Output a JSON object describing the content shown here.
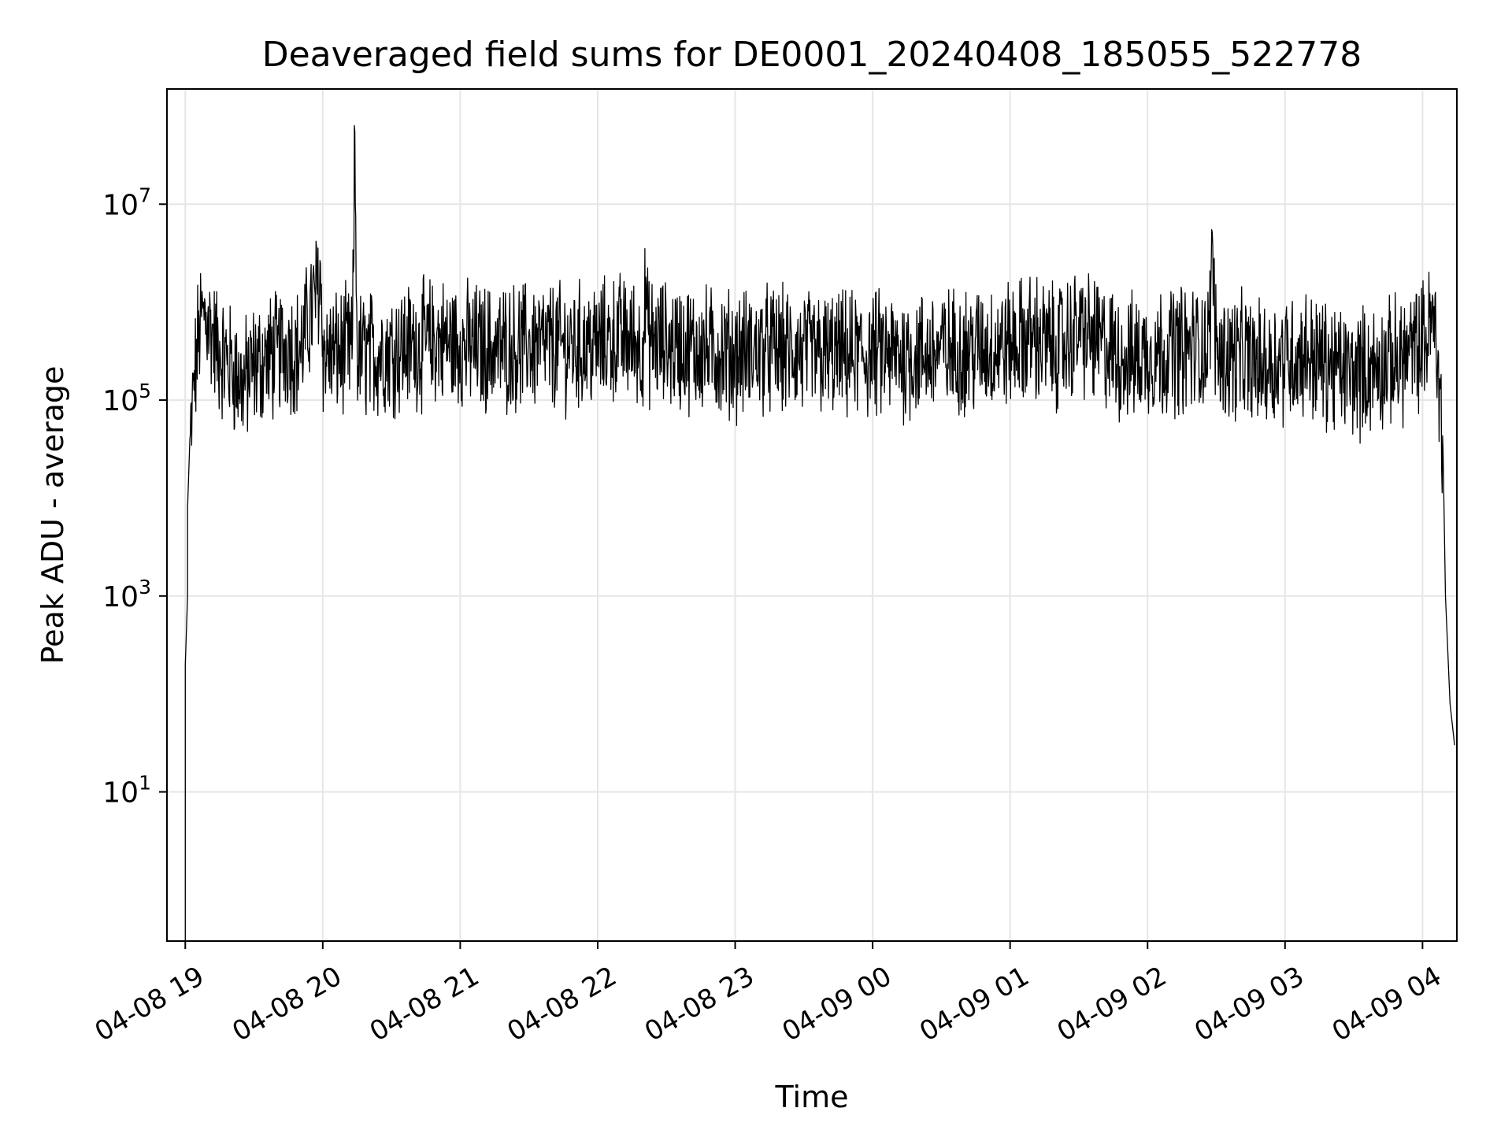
{
  "chart_data": {
    "type": "line",
    "title": "Deaveraged field sums for DE0001_20240408_185055_522778",
    "xlabel": "Time",
    "ylabel": "Peak ADU - average",
    "y_scale": "log",
    "x_axis_type": "datetime",
    "x_range": [
      "2024-04-08 18:52",
      "2024-04-09 04:15"
    ],
    "y_range": [
      0.3,
      150000000
    ],
    "x_tick_labels": [
      "04-08 19",
      "04-08 20",
      "04-08 21",
      "04-08 22",
      "04-08 23",
      "04-09 00",
      "04-09 01",
      "04-09 02",
      "04-09 03",
      "04-09 04"
    ],
    "x_tick_values": [
      "2024-04-08 19:00",
      "2024-04-08 20:00",
      "2024-04-08 21:00",
      "2024-04-08 22:00",
      "2024-04-08 23:00",
      "2024-04-09 00:00",
      "2024-04-09 01:00",
      "2024-04-09 02:00",
      "2024-04-09 03:00",
      "2024-04-09 04:00"
    ],
    "y_ticks": [
      {
        "value": 10,
        "base": "10",
        "exp": "1"
      },
      {
        "value": 1000,
        "base": "10",
        "exp": "3"
      },
      {
        "value": 100000,
        "base": "10",
        "exp": "5"
      },
      {
        "value": 10000000,
        "base": "10",
        "exp": "7"
      }
    ],
    "grid": true,
    "line_color": "#000000",
    "grid_color": "#e6e6e6",
    "series": [
      {
        "x": [
          "2024-04-08 19:00",
          "2024-04-08 19:00",
          "2024-04-08 19:01",
          "2024-04-08 19:01",
          "2024-04-08 19:02",
          "2024-04-08 19:03",
          "2024-04-08 19:04",
          "2024-04-08 19:05",
          "2024-04-08 19:06",
          "2024-04-08 19:08",
          "2024-04-08 19:10",
          "2024-04-08 19:12",
          "2024-04-08 19:15",
          "2024-04-08 19:20",
          "2024-04-08 19:25",
          "2024-04-08 19:30",
          "2024-04-08 19:35",
          "2024-04-08 19:40",
          "2024-04-08 19:45",
          "2024-04-08 19:50",
          "2024-04-08 19:59",
          "2024-04-08 20:00",
          "2024-04-08 20:01",
          "2024-04-08 20:05",
          "2024-04-08 20:13",
          "2024-04-08 20:14",
          "2024-04-08 20:15",
          "2024-04-08 20:20",
          "2024-04-08 20:30",
          "2024-04-08 20:40",
          "2024-04-08 20:50",
          "2024-04-08 21:00",
          "2024-04-08 21:15",
          "2024-04-08 21:30",
          "2024-04-08 21:45",
          "2024-04-08 22:00",
          "2024-04-08 22:10",
          "2024-04-08 22:20",
          "2024-04-08 22:21",
          "2024-04-08 22:22",
          "2024-04-08 22:30",
          "2024-04-08 22:45",
          "2024-04-08 23:00",
          "2024-04-08 23:15",
          "2024-04-08 23:30",
          "2024-04-08 23:45",
          "2024-04-09 00:00",
          "2024-04-09 00:15",
          "2024-04-09 00:30",
          "2024-04-09 00:45",
          "2024-04-09 01:00",
          "2024-04-09 01:10",
          "2024-04-09 01:20",
          "2024-04-09 01:30",
          "2024-04-09 01:40",
          "2024-04-09 01:50",
          "2024-04-09 02:00",
          "2024-04-09 02:10",
          "2024-04-09 02:20",
          "2024-04-09 02:27",
          "2024-04-09 02:28",
          "2024-04-09 02:30",
          "2024-04-09 02:40",
          "2024-04-09 02:50",
          "2024-04-09 03:00",
          "2024-04-09 03:10",
          "2024-04-09 03:20",
          "2024-04-09 03:30",
          "2024-04-09 03:40",
          "2024-04-09 03:50",
          "2024-04-09 04:00",
          "2024-04-09 04:03",
          "2024-04-09 04:05",
          "2024-04-09 04:07",
          "2024-04-09 04:09",
          "2024-04-09 04:10",
          "2024-04-09 04:12",
          "2024-04-09 04:14"
        ],
        "y": [
          0.3,
          200,
          1000,
          8000,
          40000,
          100000,
          200000,
          400000,
          700000,
          1000000,
          900000,
          600000,
          400000,
          300000,
          200000,
          300000,
          350000,
          400000,
          500000,
          400000,
          2500000,
          450000,
          400000,
          400000,
          450000,
          55000000,
          400000,
          400000,
          450000,
          500000,
          550000,
          500000,
          450000,
          500000,
          480000,
          500000,
          600000,
          500000,
          1800000,
          550000,
          500000,
          450000,
          400000,
          450000,
          400000,
          380000,
          400000,
          380000,
          420000,
          450000,
          500000,
          600000,
          450000,
          700000,
          500000,
          350000,
          400000,
          450000,
          450000,
          500000,
          5500000,
          400000,
          380000,
          300000,
          380000,
          400000,
          300000,
          250000,
          300000,
          350000,
          500000,
          700000,
          900000,
          300000,
          30000,
          1000,
          80,
          30
        ]
      }
    ]
  }
}
